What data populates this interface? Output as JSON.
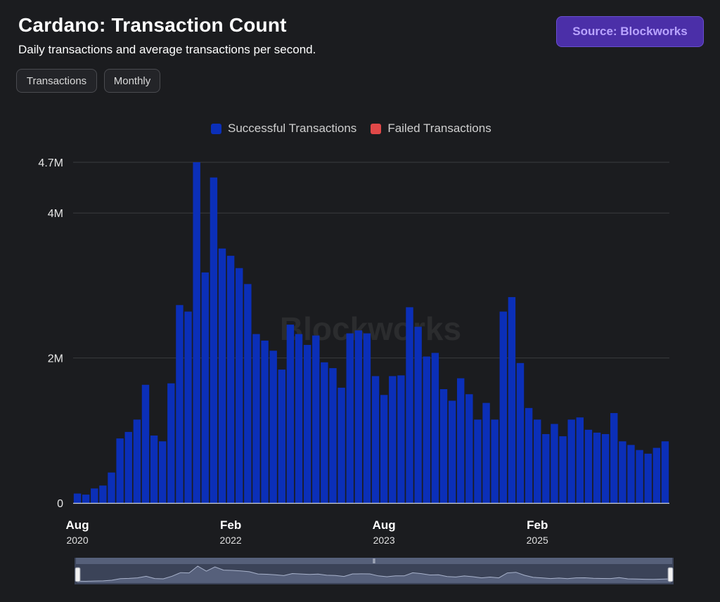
{
  "header": {
    "title": "Cardano: Transaction Count",
    "subtitle": "Daily transactions and average transactions per second.",
    "source_label": "Source: Blockworks"
  },
  "filters": {
    "metric_label": "Transactions",
    "period_label": "Monthly"
  },
  "watermark": "Blockworks",
  "colors": {
    "successful": "#0b2fb8",
    "failed": "#e04848",
    "grid": "#3a3b3f",
    "background": "#1b1c1f"
  },
  "chart_data": {
    "type": "bar",
    "stacked": true,
    "legend": [
      {
        "name": "Successful Transactions",
        "color": "#0b2fb8"
      },
      {
        "name": "Failed Transactions",
        "color": "#e04848"
      }
    ],
    "y_ticks": [
      {
        "value": 0,
        "label": "0"
      },
      {
        "value": 2000000,
        "label": "2M"
      },
      {
        "value": 4000000,
        "label": "4M"
      },
      {
        "value": 4700000,
        "label": "4.7M"
      }
    ],
    "ylim": [
      0,
      4700000
    ],
    "x_ticks": [
      {
        "index": 0,
        "label": "Aug",
        "year": "2020"
      },
      {
        "index": 18,
        "label": "Feb",
        "year": "2022"
      },
      {
        "index": 36,
        "label": "Aug",
        "year": "2023"
      },
      {
        "index": 54,
        "label": "Feb",
        "year": "2025"
      }
    ],
    "series": [
      {
        "name": "Successful Transactions",
        "values": [
          130000,
          115000,
          200000,
          240000,
          420000,
          890000,
          980000,
          1150000,
          1630000,
          930000,
          850000,
          1650000,
          2730000,
          2640000,
          4700000,
          3180000,
          4490000,
          3510000,
          3410000,
          3240000,
          3020000,
          2330000,
          2240000,
          2100000,
          1840000,
          2460000,
          2330000,
          2180000,
          2310000,
          1940000,
          1860000,
          1590000,
          2340000,
          2380000,
          2340000,
          1750000,
          1490000,
          1750000,
          1760000,
          2700000,
          2430000,
          2020000,
          2070000,
          1570000,
          1410000,
          1720000,
          1500000,
          1150000,
          1380000,
          1150000,
          2640000,
          2840000,
          1930000,
          1310000,
          1150000,
          950000,
          1090000,
          920000,
          1150000,
          1180000,
          1010000,
          970000,
          950000,
          1240000,
          850000,
          800000,
          730000,
          680000,
          760000,
          850000
        ],
        "color": "#0b2fb8"
      },
      {
        "name": "Failed Transactions",
        "values": [
          0,
          0,
          0,
          0,
          0,
          0,
          0,
          0,
          0,
          0,
          0,
          0,
          0,
          0,
          0,
          0,
          0,
          0,
          0,
          0,
          0,
          0,
          0,
          0,
          0,
          0,
          0,
          0,
          0,
          0,
          0,
          0,
          0,
          0,
          0,
          0,
          0,
          0,
          0,
          0,
          0,
          0,
          0,
          0,
          0,
          0,
          0,
          0,
          0,
          0,
          0,
          0,
          0,
          0,
          0,
          0,
          0,
          0,
          0,
          0,
          0,
          0,
          0,
          0,
          0,
          0,
          0,
          0,
          0,
          0
        ],
        "color": "#e04848"
      }
    ]
  },
  "navigator": {
    "handle_glyph": "⦀"
  }
}
